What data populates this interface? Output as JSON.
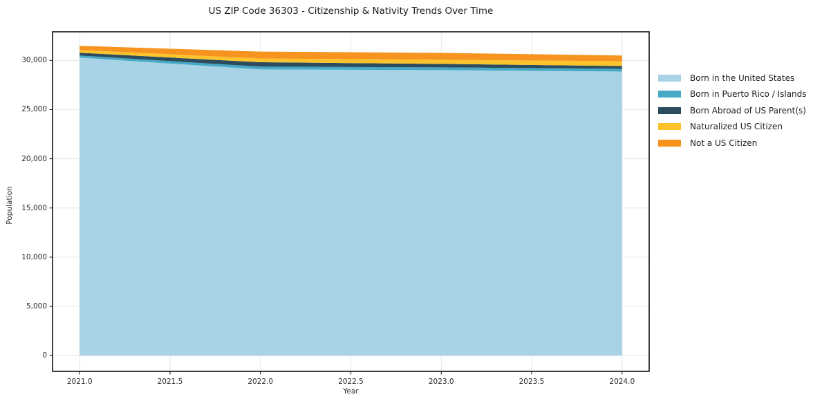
{
  "chart_data": {
    "type": "area",
    "stacked": true,
    "title": "US ZIP Code 36303 - Citizenship & Nativity Trends Over Time",
    "xlabel": "Year",
    "ylabel": "Population",
    "x": [
      2021,
      2022,
      2023,
      2024
    ],
    "series": [
      {
        "name": "Born in the United States",
        "color": "#a8d2e6",
        "values": [
          30280,
          29080,
          29010,
          28860
        ]
      },
      {
        "name": "Born in Puerto Rico / Islands",
        "color": "#46a9c6",
        "values": [
          210,
          280,
          280,
          280
        ]
      },
      {
        "name": "Born Abroad of US Parent(s)",
        "color": "#2b4c5e",
        "values": [
          280,
          450,
          350,
          280
        ]
      },
      {
        "name": "Naturalized US Citizen",
        "color": "#fcc32d",
        "values": [
          280,
          380,
          420,
          500
        ]
      },
      {
        "name": "Not a US Citizen",
        "color": "#f7941f",
        "values": [
          430,
          700,
          700,
          570
        ]
      }
    ],
    "xticks": [
      2021.0,
      2021.5,
      2022.0,
      2022.5,
      2023.0,
      2023.5,
      2024.0
    ],
    "xtick_labels": [
      "2021.0",
      "2021.5",
      "2022.0",
      "2022.5",
      "2023.0",
      "2023.5",
      "2024.0"
    ],
    "yticks": [
      0,
      5000,
      10000,
      15000,
      20000,
      25000,
      30000
    ],
    "ytick_labels": [
      "0",
      "5,000",
      "10,000",
      "15,000",
      "20,000",
      "25,000",
      "30,000"
    ],
    "xlim": [
      2020.85,
      2024.15
    ],
    "ylim": [
      -1600,
      32900
    ],
    "grid": true,
    "grid_color": "#e6e6e6",
    "frame_color": "#111111",
    "legend_position": "right"
  }
}
